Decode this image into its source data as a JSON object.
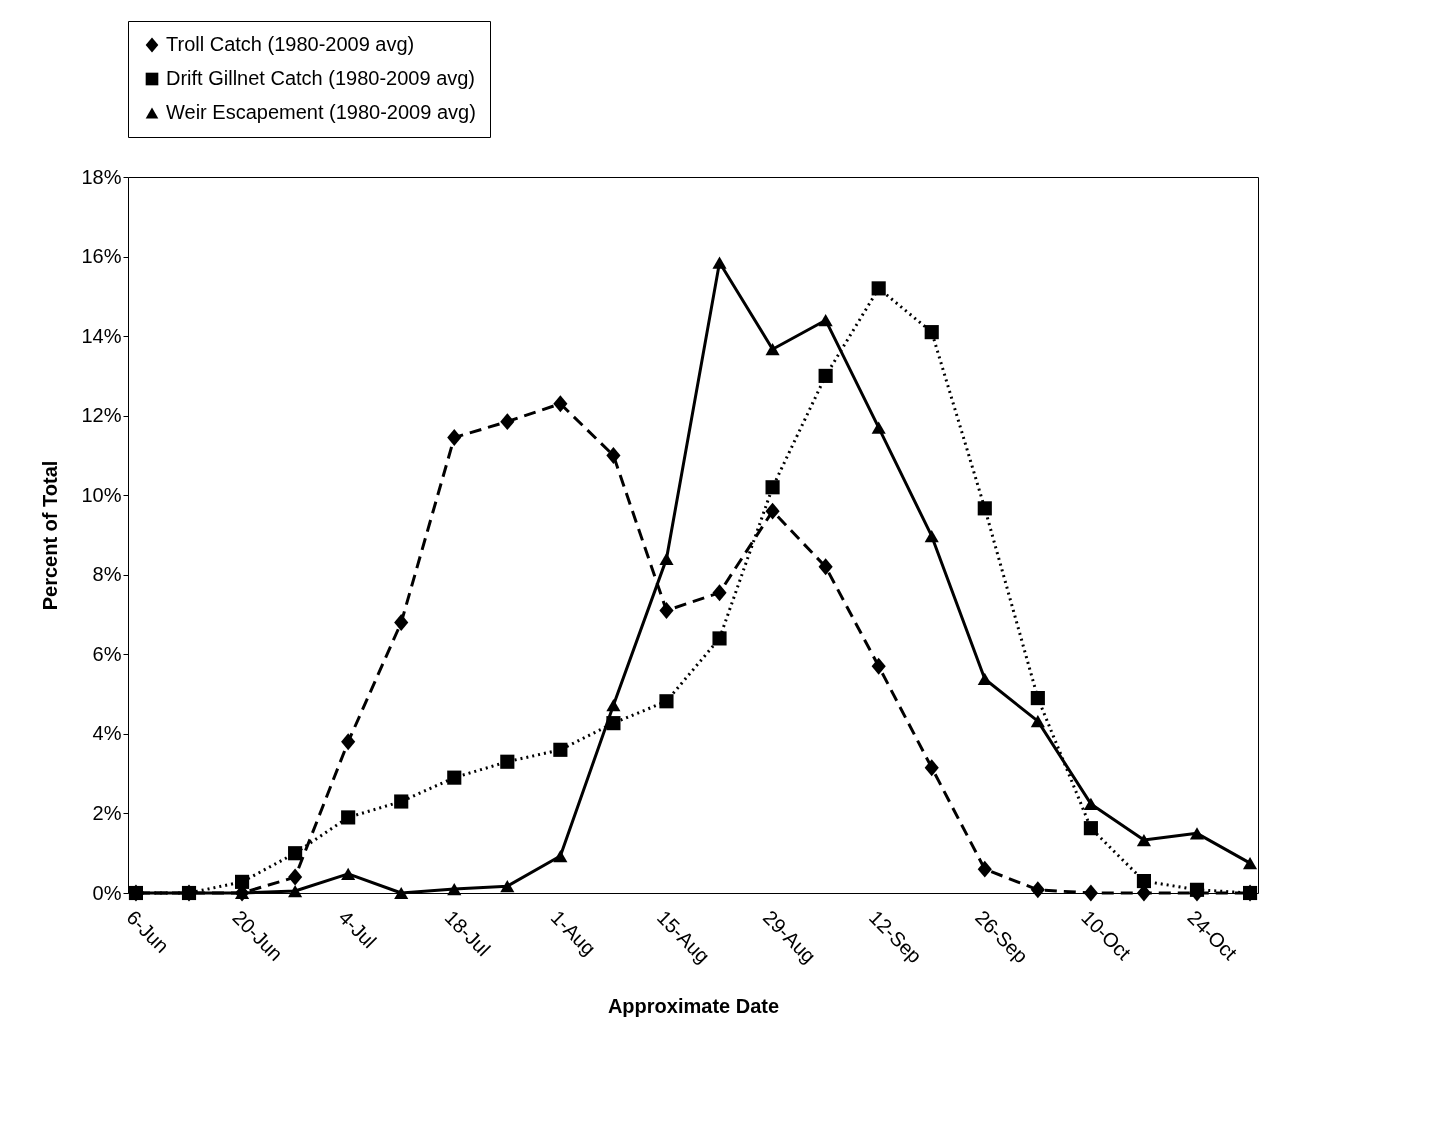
{
  "chart_data": {
    "type": "line",
    "xlabel": "Approximate Date",
    "ylabel": "Percent of Total",
    "categories": [
      "6-Jun",
      null,
      "20-Jun",
      null,
      "4-Jul",
      null,
      "18-Jul",
      null,
      "1-Aug",
      null,
      "15-Aug",
      null,
      "29-Aug",
      null,
      "12-Sep",
      null,
      "26-Sep",
      null,
      "10-Oct",
      null,
      "24-Oct",
      null
    ],
    "ylim": [
      0,
      18
    ],
    "yticks": [
      {
        "value": 0,
        "label": "0%"
      },
      {
        "value": 2,
        "label": "2%"
      },
      {
        "value": 4,
        "label": "4%"
      },
      {
        "value": 6,
        "label": "6%"
      },
      {
        "value": 8,
        "label": "8%"
      },
      {
        "value": 10,
        "label": "10%"
      },
      {
        "value": 12,
        "label": "12%"
      },
      {
        "value": 14,
        "label": "14%"
      },
      {
        "value": 16,
        "label": "16%"
      },
      {
        "value": 18,
        "label": "18%"
      }
    ],
    "grid": false,
    "legend": "top",
    "series": [
      {
        "name": "Troll Catch (1980-2009 avg)",
        "color": "#000000",
        "marker": "diamond",
        "line_style": "dashed",
        "values": [
          0,
          0,
          0,
          0.4,
          3.8,
          6.8,
          11.45,
          11.85,
          12.3,
          11.0,
          7.1,
          7.55,
          9.6,
          8.2,
          5.7,
          3.15,
          0.6,
          0.08,
          0,
          0,
          0,
          0
        ]
      },
      {
        "name": "Drift Gillnet Catch (1980-2009 avg)",
        "color": "#000000",
        "marker": "square",
        "line_style": "dotted",
        "values": [
          0,
          0,
          0.28,
          1.0,
          1.9,
          2.3,
          2.9,
          3.3,
          3.6,
          4.27,
          4.82,
          6.4,
          10.2,
          13.0,
          15.2,
          14.1,
          9.67,
          4.9,
          1.63,
          0.3,
          0.08,
          0
        ]
      },
      {
        "name": "Weir Escapement (1980-2009 avg)",
        "color": "#000000",
        "marker": "triangle",
        "line_style": "solid",
        "values": [
          0,
          0,
          0,
          0.05,
          0.48,
          0,
          0.1,
          0.17,
          0.93,
          4.72,
          8.4,
          15.85,
          13.67,
          14.4,
          11.7,
          8.97,
          5.38,
          4.32,
          2.24,
          1.33,
          1.5,
          0.75
        ]
      }
    ]
  }
}
